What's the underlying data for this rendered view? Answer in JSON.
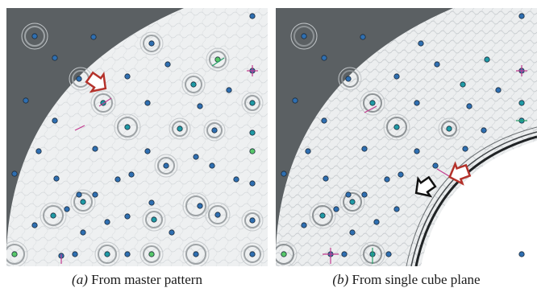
{
  "figure": {
    "panels": [
      {
        "label": "(a)",
        "caption": "From master pattern"
      },
      {
        "label": "(b)",
        "caption": "From single cube plane"
      }
    ]
  },
  "colors": {
    "background_gray": "#5b6063",
    "pattern_field": "#eef0f1",
    "spot_blue": "#2f6fb1",
    "spot_teal": "#1f9aa5",
    "spot_green": "#57c86a",
    "arrow_red": "#b4322b",
    "arrow_black": "#111111",
    "tick_magenta": "#c23a8f",
    "tick_green": "#29a06a"
  },
  "icons": [
    "arrow-red-icon",
    "arrow-black-icon"
  ]
}
